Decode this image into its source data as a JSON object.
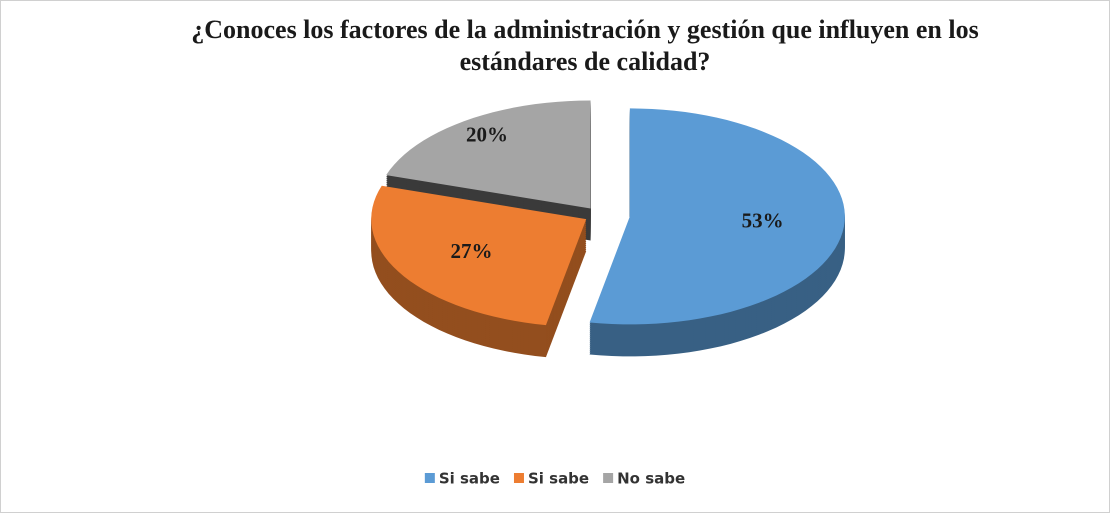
{
  "chart_data": {
    "type": "pie",
    "title": "¿Conoces los factores de la administración y gestión que influyen en los estándares de calidad?",
    "categories": [
      "Si sabe",
      "Si sabe",
      "No sabe"
    ],
    "values": [
      53,
      27,
      20
    ],
    "value_labels": [
      "53%",
      "27%",
      "20%"
    ],
    "colors": [
      "#5b9bd5",
      "#ed7d31",
      "#a5a5a5"
    ],
    "legend": "bottom"
  }
}
